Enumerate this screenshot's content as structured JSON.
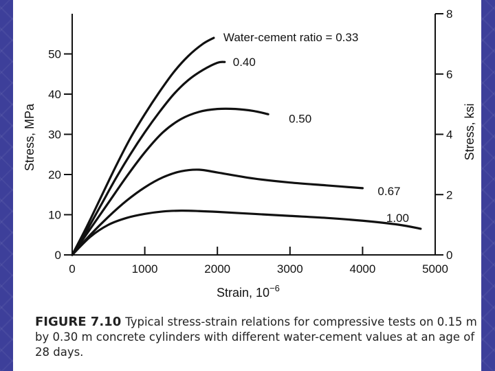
{
  "chart_data": {
    "type": "line",
    "xlabel": "Strain, 10",
    "xlabel_exponent": "−6",
    "ylabel": "Stress, MPa",
    "ylabel_right": "Stress, ksi",
    "xlim": [
      0,
      5000
    ],
    "ylim": [
      0,
      60
    ],
    "ylim_right": [
      0,
      8
    ],
    "x_ticks": [
      0,
      1000,
      2000,
      3000,
      4000,
      5000
    ],
    "y_ticks": [
      0,
      10,
      20,
      30,
      40,
      50
    ],
    "y_ticks_right": [
      0,
      2,
      4,
      6,
      8
    ],
    "series": [
      {
        "name": "Water-cement ratio = 0.33",
        "x": [
          0,
          200,
          400,
          600,
          800,
          1000,
          1200,
          1400,
          1600,
          1800,
          1950
        ],
        "y": [
          0,
          7,
          14.5,
          22,
          29,
          35,
          40.5,
          45.5,
          49.5,
          52.5,
          54
        ]
      },
      {
        "name": "0.40",
        "x": [
          0,
          200,
          400,
          600,
          800,
          1000,
          1200,
          1400,
          1600,
          1800,
          2000,
          2100
        ],
        "y": [
          0,
          6,
          12.5,
          19,
          25,
          30.5,
          35.5,
          40,
          43.5,
          46,
          47.8,
          48
        ]
      },
      {
        "name": "0.50",
        "x": [
          0,
          250,
          500,
          750,
          1000,
          1250,
          1500,
          1750,
          2000,
          2250,
          2500,
          2700
        ],
        "y": [
          0,
          6.5,
          13,
          19.5,
          25.5,
          30.5,
          33.8,
          35.6,
          36.3,
          36.3,
          35.8,
          35
        ]
      },
      {
        "name": "0.67",
        "x": [
          0,
          250,
          500,
          750,
          1000,
          1250,
          1500,
          1750,
          2000,
          2500,
          3000,
          3500,
          4000
        ],
        "y": [
          0,
          5,
          9.5,
          13.5,
          16.8,
          19.3,
          20.8,
          21.2,
          20.5,
          19,
          18,
          17.3,
          16.6
        ]
      },
      {
        "name": "1.00",
        "x": [
          0,
          250,
          500,
          750,
          1000,
          1250,
          1500,
          1750,
          2000,
          2500,
          3000,
          3500,
          4000,
          4500,
          4800
        ],
        "y": [
          0,
          4.5,
          7.5,
          9.2,
          10.2,
          10.8,
          11,
          10.9,
          10.7,
          10.2,
          9.7,
          9.2,
          8.5,
          7.5,
          6.5
        ]
      }
    ]
  },
  "caption": {
    "label": "FIGURE 7.10",
    "text": "Typical stress-strain relations for compressive tests on 0.15 m by 0.30 m concrete cylinders with different water-cement values at an age of 28 days."
  }
}
